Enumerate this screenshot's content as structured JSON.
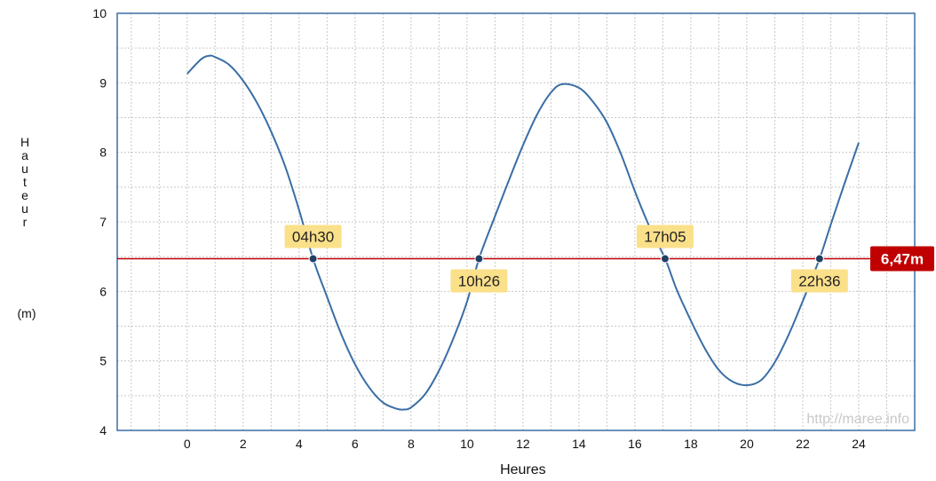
{
  "chart_data": {
    "type": "line",
    "xlabel": "Heures",
    "ylabel": "Hauteur",
    "ylabel_unit": "(m)",
    "xlim": [
      -2.5,
      26
    ],
    "ylim": [
      4,
      10
    ],
    "xticks": [
      0,
      2,
      4,
      6,
      8,
      10,
      12,
      14,
      16,
      18,
      20,
      22,
      24
    ],
    "yticks": [
      4,
      5,
      6,
      7,
      8,
      9,
      10
    ],
    "grid": true,
    "series": [
      {
        "x": [
          0,
          0.5,
          0.8,
          1,
          1.5,
          2,
          2.5,
          3,
          3.5,
          4,
          4.5,
          5,
          5.5,
          6,
          6.5,
          7,
          7.5,
          7.75,
          8,
          8.5,
          9,
          9.5,
          10,
          10.43,
          11,
          11.5,
          12,
          12.5,
          13,
          13.4,
          14,
          14.5,
          15,
          15.5,
          16,
          16.5,
          17.08,
          17.5,
          18,
          18.5,
          19,
          19.5,
          20,
          20.5,
          21,
          21.5,
          22,
          22.6,
          23,
          23.5,
          24
        ],
        "y": [
          9.13,
          9.34,
          9.39,
          9.37,
          9.26,
          9.03,
          8.71,
          8.3,
          7.8,
          7.17,
          6.47,
          5.92,
          5.39,
          4.95,
          4.62,
          4.4,
          4.31,
          4.3,
          4.33,
          4.52,
          4.86,
          5.31,
          5.85,
          6.47,
          7.08,
          7.6,
          8.1,
          8.54,
          8.86,
          8.98,
          8.93,
          8.73,
          8.43,
          7.98,
          7.44,
          6.95,
          6.47,
          6.02,
          5.58,
          5.18,
          4.87,
          4.7,
          4.65,
          4.72,
          4.98,
          5.38,
          5.86,
          6.47,
          6.96,
          7.56,
          8.14
        ]
      }
    ],
    "level": {
      "value": 6.47,
      "label": "6,47m",
      "color": "#c00000"
    },
    "crossings": [
      {
        "x": 4.5,
        "y": 6.47,
        "label": "04h30",
        "position": "above"
      },
      {
        "x": 10.43,
        "y": 6.47,
        "label": "10h26",
        "position": "below"
      },
      {
        "x": 17.08,
        "y": 6.47,
        "label": "17h05",
        "position": "above"
      },
      {
        "x": 22.6,
        "y": 6.47,
        "label": "22h36",
        "position": "below"
      }
    ],
    "watermark": "http://maree.info",
    "colors": {
      "line": "#3a6ea5",
      "level_line": "#c00000",
      "callout_bg": "#fbe08a",
      "frame": "#3a6ea5",
      "grid": "#c8c8c8",
      "point": "#1f3f63"
    }
  }
}
